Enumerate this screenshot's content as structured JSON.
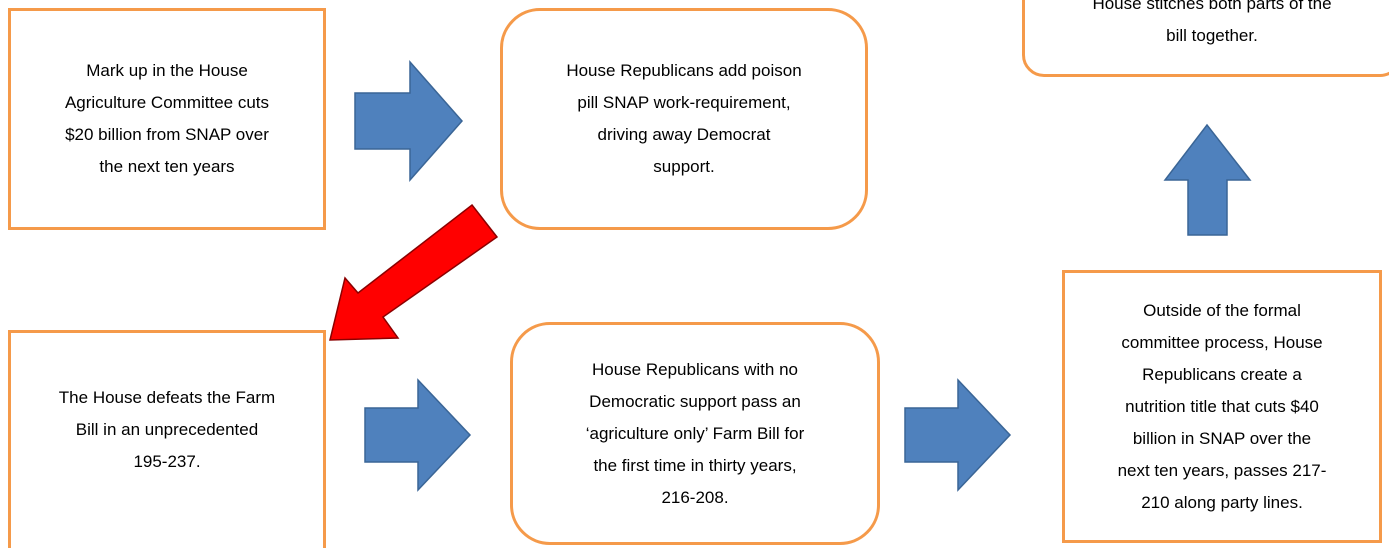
{
  "nodes": [
    {
      "lines": [
        "Mark up in the House",
        "Agriculture Committee cuts",
        "$20 billion from SNAP over",
        "the next ten years"
      ]
    },
    {
      "lines": [
        "House Republicans add poison",
        "pill SNAP work-requirement,",
        "driving away Democrat",
        "support."
      ]
    },
    {
      "lines": [
        "House stitches both parts of the",
        "bill together."
      ]
    },
    {
      "lines": [
        "The House defeats the Farm",
        "Bill in an unprecedented",
        "195-237."
      ]
    },
    {
      "lines": [
        "House Republicans with no",
        "Democratic support pass an",
        "‘agriculture only’ Farm Bill for",
        "the first time in thirty years,",
        "216-208."
      ]
    },
    {
      "lines": [
        "Outside of the formal",
        "committee process, House",
        "Republicans create a",
        "nutrition title that cuts $40",
        "billion in SNAP over the",
        "next ten years, passes 217-",
        "210 along party lines."
      ]
    }
  ]
}
